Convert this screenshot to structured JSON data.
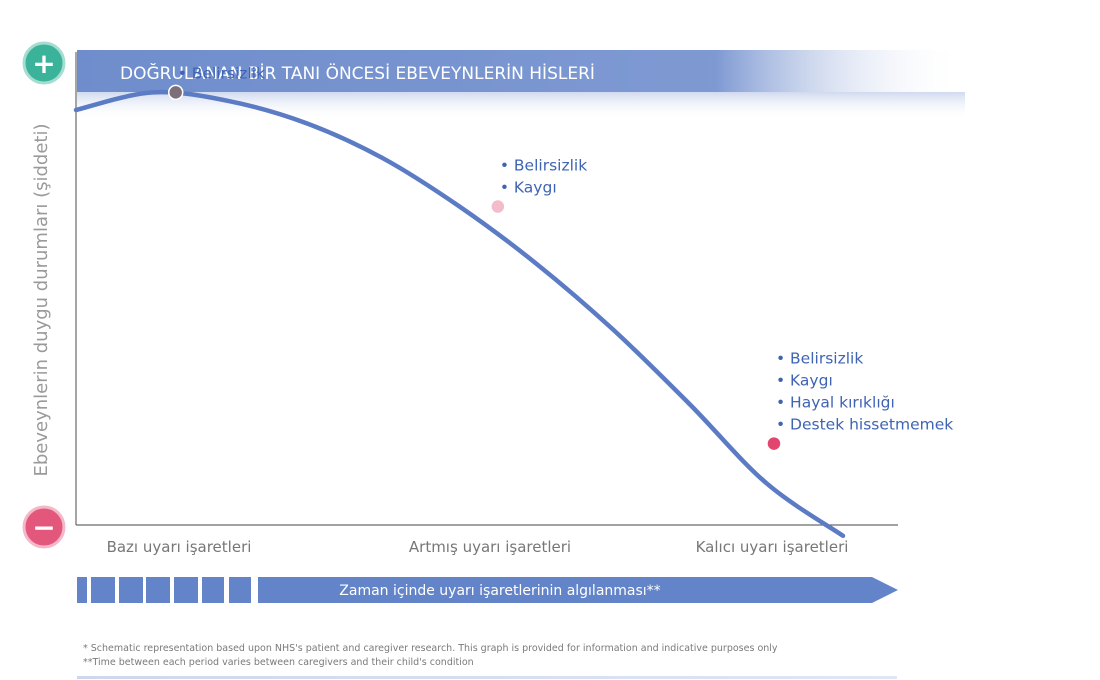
{
  "colors": {
    "curve": "#5b7bc4",
    "banner": "#6f8dcc",
    "annotation_text": "#3f64b4",
    "axis": "#6a6a6a",
    "plus_sign": "#3bb39a",
    "minus_sign": "#e4577c",
    "arrow": "#6384c8"
  },
  "signs": {
    "plus": "+",
    "minus": "−"
  },
  "chart_data": {
    "type": "line",
    "title": "DOĞRULANAN BİR TANI ÖNCESİ EBEVEYNLERİN HİSLERİ",
    "ylabel": "Ebeveynlerin duygu durumları (şiddeti)",
    "xlabel": "Zaman içinde uyarı işaretlerinin algılanması**",
    "grid": false,
    "legend": "none",
    "x_categories": [
      "Bazı uyarı işaretleri",
      "Artmış uyarı işaretleri",
      "Kalıcı uyarı işaretleri"
    ],
    "series": [
      {
        "x": [
          0,
          0.1,
          0.2,
          0.3,
          0.4,
          0.5,
          0.6,
          0.7,
          0.8,
          0.9,
          1.0
        ],
        "values": [
          0.95,
          0.99,
          0.97,
          0.92,
          0.84,
          0.73,
          0.6,
          0.45,
          0.28,
          0.1,
          -0.02
        ]
      }
    ],
    "points": [
      {
        "x": 0.13,
        "y": 0.99,
        "color": "#7d6f7a",
        "labels": [
          "Belirsizlik"
        ]
      },
      {
        "x": 0.55,
        "y": 0.73,
        "color": "#f2bccb",
        "labels": [
          "Belirsizlik",
          "Kaygı"
        ]
      },
      {
        "x": 0.91,
        "y": 0.19,
        "color": "#e2456e",
        "labels": [
          "Belirsizlik",
          "Kaygı",
          "Hayal kırıklığı",
          "Destek hissetmemek"
        ]
      }
    ]
  },
  "footnotes": [
    "* Schematic representation based upon NHS's patient and caregiver research. This graph is provided for information and indicative purposes only",
    "**Time between each period varies between caregivers and their child's condition"
  ]
}
